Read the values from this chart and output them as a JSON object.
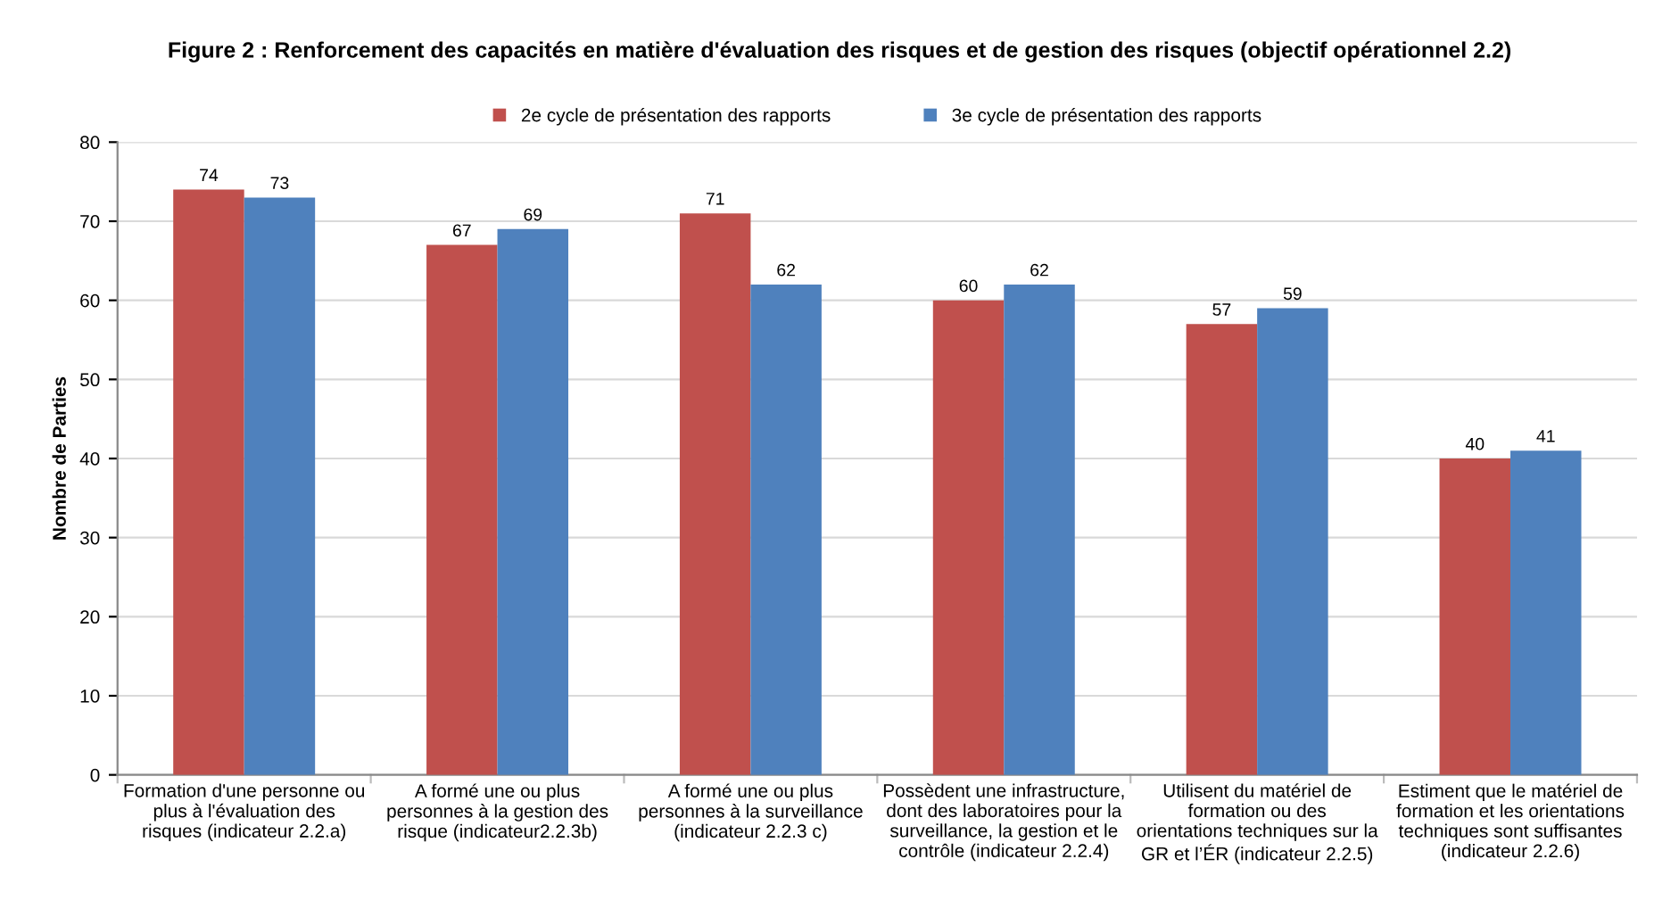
{
  "chart_data": {
    "type": "bar",
    "title": "Figure 2 : Renforcement des capacités en matière d'évaluation des risques et de gestion des risques (objectif opérationnel 2.2)",
    "ylabel": "Nombre de Parties",
    "categories": [
      "Formation d'une personne ou\nplus à l'évaluation des\nrisques (indicateur 2.2.a)",
      "A formé une ou plus\npersonnes à la gestion des\nrisque (indicateur2.2.3b)",
      "A formé une ou plus\npersonnes à la surveillance\n(indicateur 2.2.3 c)",
      "Possèdent une infrastructure,\ndont des laboratoires pour la\nsurveillance, la gestion et le\ncontrôle (indicateur 2.2.4)",
      "Utilisent du matériel de\nformation ou des\norientations techniques sur la\nGR et l’ÉR (indicateur 2.2.5)",
      "Estiment que le matériel de\nformation et les orientations\ntechniques sont suffisantes\n(indicateur 2.2.6)"
    ],
    "series": [
      {
        "name": "2e cycle de présentation des rapports",
        "color": "#c0504d",
        "values": [
          74,
          67,
          71,
          60,
          57,
          40
        ]
      },
      {
        "name": "3e cycle de présentation des rapports",
        "color": "#4f81bd",
        "values": [
          73,
          69,
          62,
          62,
          59,
          41
        ]
      }
    ],
    "ylim": [
      0,
      80
    ],
    "yticks": [
      0,
      10,
      20,
      30,
      40,
      50,
      60,
      70,
      80
    ],
    "grid": "y",
    "legend": "top",
    "data_labels": true
  }
}
